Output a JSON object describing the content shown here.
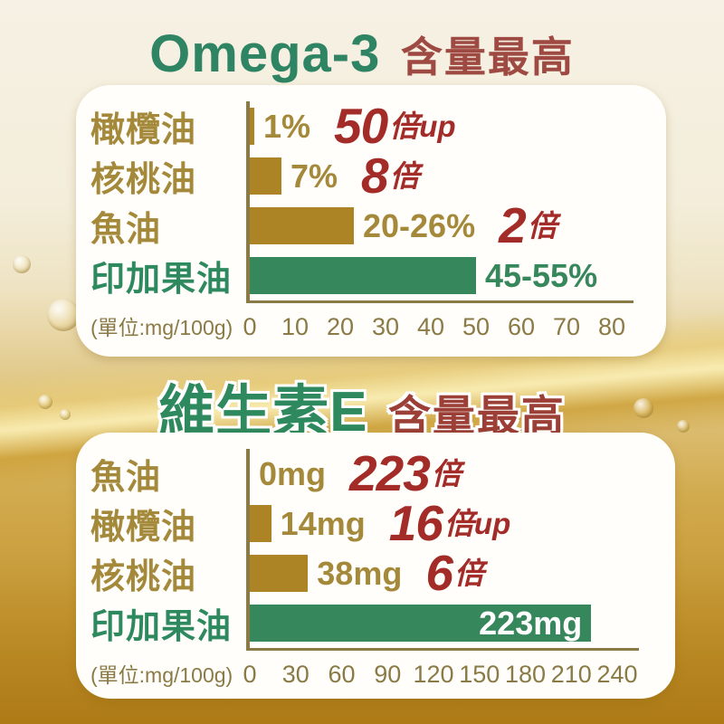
{
  "titles": [
    {
      "main": "Omega-3",
      "suffix": "含量最高",
      "main_color": "#2e8463",
      "suffix_color": "#9e4a42"
    },
    {
      "main": "維生素E",
      "suffix": "含量最高",
      "main_color": "#2e8a5e",
      "suffix_color": "#9c3f36"
    }
  ],
  "colors": {
    "bar_gold": "#ac8425",
    "bar_green": "#37875c",
    "label_gold": "#a5893a",
    "label_green": "#2e8a5e",
    "multiplier_red": "#a32c28",
    "axis": "#8a7a45",
    "panel_bg": "#fffefb"
  },
  "chart_data": [
    {
      "type": "bar",
      "orientation": "horizontal",
      "title": "Omega-3 含量最高",
      "unit_label": "(單位:mg/100g)",
      "xlim": [
        0,
        80
      ],
      "ticks": [
        "0",
        "10",
        "20",
        "30",
        "40",
        "50",
        "60",
        "70",
        "80"
      ],
      "rows": [
        {
          "label": "橄欖油",
          "value": 1,
          "value_label": "1%",
          "mult_num": "50",
          "mult_suffix": "倍up"
        },
        {
          "label": "核桃油",
          "value": 7,
          "value_label": "7%",
          "mult_num": "8",
          "mult_suffix": "倍"
        },
        {
          "label": "魚油",
          "value": 23,
          "value_label": "20-26%",
          "mult_num": "2",
          "mult_suffix": "倍"
        },
        {
          "label": "印加果油",
          "value": 50,
          "value_label": "45-55%",
          "mult_num": "",
          "mult_suffix": ""
        }
      ]
    },
    {
      "type": "bar",
      "orientation": "horizontal",
      "title": "維生素E 含量最高",
      "unit_label": "(單位:mg/100g)",
      "xlim": [
        0,
        240
      ],
      "ticks": [
        "0",
        "30",
        "60",
        "90",
        "120",
        "150",
        "180",
        "210",
        "240"
      ],
      "rows": [
        {
          "label": "魚油",
          "value": 0,
          "value_label": "0mg",
          "mult_num": "223",
          "mult_suffix": "倍"
        },
        {
          "label": "橄欖油",
          "value": 14,
          "value_label": "14mg",
          "mult_num": "16",
          "mult_suffix": "倍up"
        },
        {
          "label": "核桃油",
          "value": 38,
          "value_label": "38mg",
          "mult_num": "6",
          "mult_suffix": "倍"
        },
        {
          "label": "印加果油",
          "value": 223,
          "value_label": "223mg",
          "mult_num": "",
          "mult_suffix": ""
        }
      ]
    }
  ]
}
